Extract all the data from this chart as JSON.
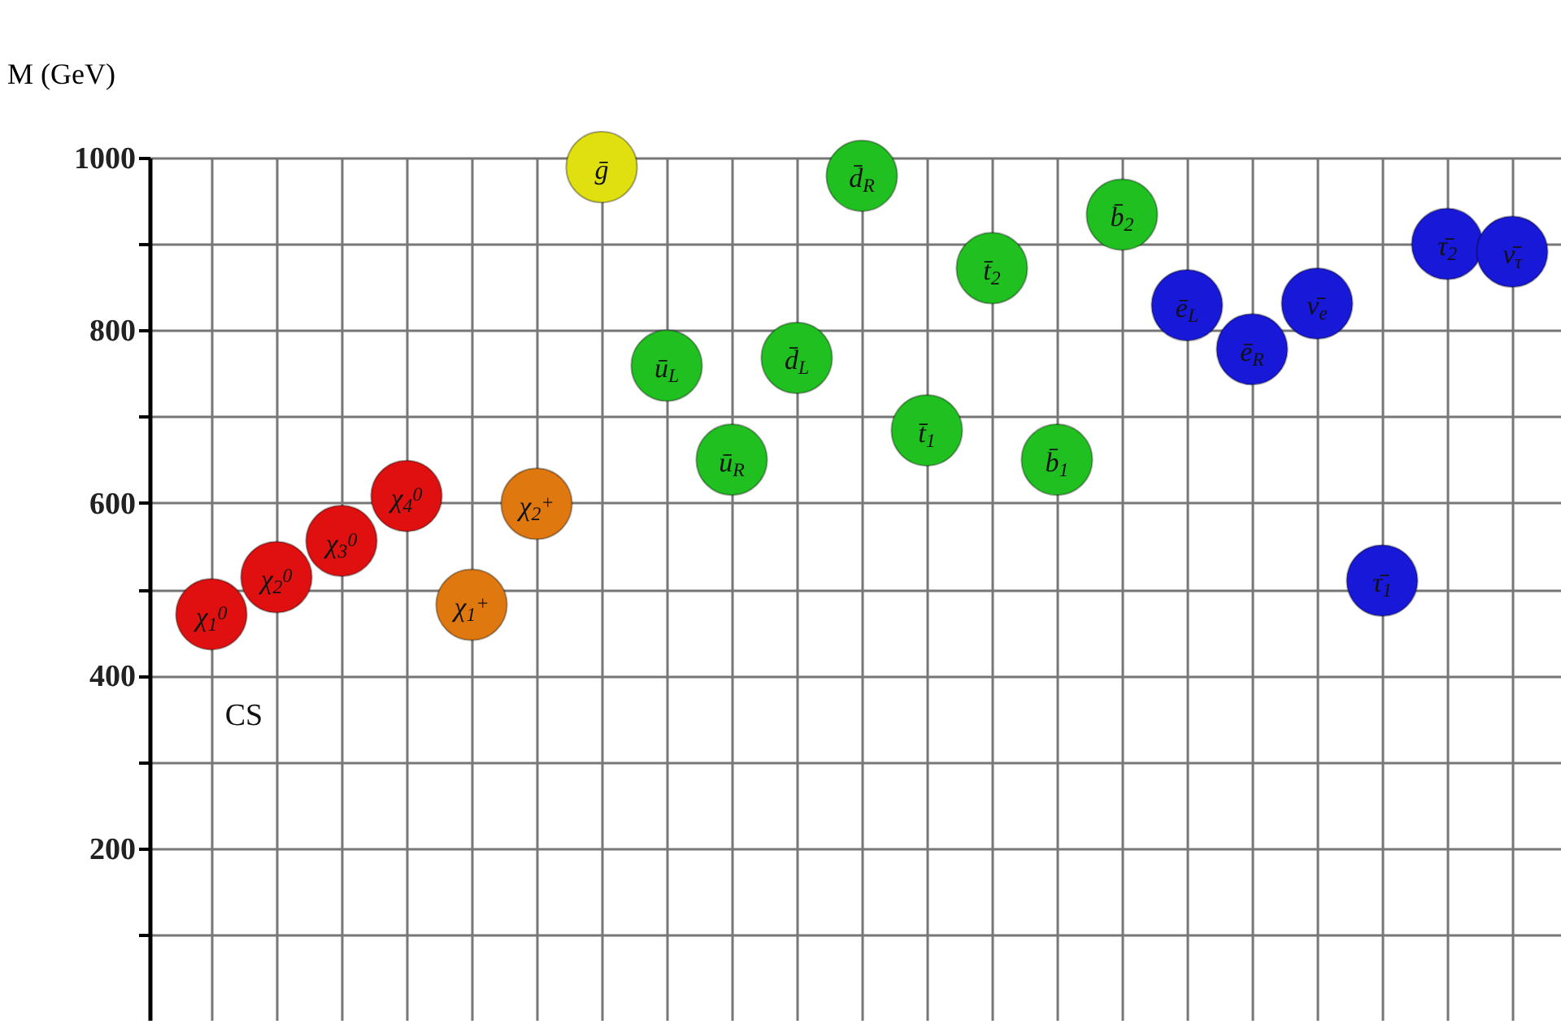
{
  "chart_data": {
    "type": "scatter",
    "ylabel": "M (GeV)",
    "categories": [
      "χ$_{1}$$^{0}$",
      "χ$_{2}$$^{0}$",
      "χ$_{3}$$^{0}$",
      "χ$_{4}$$^{0}$",
      "χ$_{1}$$^{+}$",
      "χ$_{2}$$^{+}$",
      "ḡ",
      "ū$_{L}$",
      "ū$_{R}$",
      "d̄$_{L}$",
      "d̄$_{R}$",
      "t̄$_{1}$",
      "t̄$_{2}$",
      "b̄$_{1}$",
      "b̄$_{2}$",
      "ē$_{L}$",
      "ē$_{R}$",
      "ν̄$_{e}$",
      "τ̄$_{1}$",
      "τ̄$_{2}$",
      "ν̄$_{τ}$"
    ],
    "values": [
      471,
      514,
      556,
      608,
      482,
      599,
      989,
      759,
      650,
      768,
      979,
      684,
      872,
      650,
      934,
      829,
      778,
      831,
      510,
      900,
      891
    ],
    "colors": [
      "#e01010",
      "#e01010",
      "#e01010",
      "#e01010",
      "#e07810",
      "#e07810",
      "#e0e010",
      "#20c020",
      "#20c020",
      "#20c020",
      "#20c020",
      "#20c020",
      "#20c020",
      "#20c020",
      "#20c020",
      "#1818d8",
      "#1818d8",
      "#1818d8",
      "#1818d8",
      "#1818d8",
      "#1818d8"
    ],
    "ylim": [
      0,
      1000
    ],
    "yticks": [
      {
        "value": 100,
        "label": null
      },
      200,
      {
        "value": 300,
        "label": null
      },
      400,
      {
        "value": 500,
        "label": null
      },
      600,
      {
        "value": 700,
        "label": null
      },
      800,
      {
        "value": 900,
        "label": null
      },
      1000
    ],
    "grid": true,
    "tick_labels": "y",
    "marker": "circle",
    "annotations": [
      "CS"
    ]
  }
}
